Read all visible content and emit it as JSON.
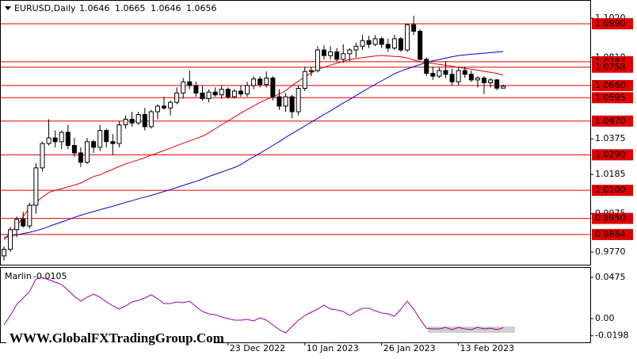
{
  "chart_data": {
    "type": "candlestick",
    "title": "EURUSD,Daily",
    "categories": [
      null,
      null,
      null,
      null,
      null,
      null,
      null,
      null,
      null,
      null,
      null,
      null,
      null,
      null,
      null,
      null,
      null,
      null,
      null,
      null,
      null,
      null,
      null,
      null,
      null,
      null,
      null,
      null,
      null,
      null,
      null,
      null,
      null,
      null,
      null,
      "23 Dec 2022",
      null,
      null,
      null,
      null,
      null,
      null,
      null,
      null,
      null,
      null,
      null,
      "10 Jan 2023",
      null,
      null,
      null,
      null,
      null,
      null,
      null,
      null,
      null,
      null,
      null,
      "26 Jan 2023",
      null,
      null,
      null,
      null,
      null,
      null,
      null,
      null,
      null,
      null,
      null,
      "13 Feb 2023",
      null,
      null,
      null,
      null,
      null,
      null,
      null
    ],
    "open": [
      0.975,
      0.9785,
      0.989,
      0.9945,
      0.991,
      1.002,
      1.022,
      1.035,
      1.038,
      1.036,
      1.041,
      1.034,
      1.03,
      1.025,
      1.036,
      1.033,
      1.042,
      1.036,
      1.035,
      1.045,
      1.048,
      1.046,
      1.0505,
      1.044,
      1.052,
      1.055,
      1.054,
      1.057,
      1.062,
      1.068,
      1.066,
      1.062,
      1.059,
      1.0625,
      1.061,
      1.064,
      1.06,
      1.063,
      1.0615,
      1.066,
      1.0695,
      1.0665,
      1.07,
      1.06,
      1.055,
      1.06,
      1.052,
      1.0645,
      1.0735,
      1.074,
      1.085,
      1.082,
      1.084,
      1.08,
      1.083,
      1.085,
      1.087,
      1.09,
      1.088,
      1.091,
      1.088,
      1.086,
      1.091,
      1.085,
      1.0985,
      1.095,
      1.08,
      1.0725,
      1.071,
      1.074,
      1.072,
      1.068,
      1.074,
      1.072,
      1.069,
      1.07,
      1.0675,
      1.069,
      1.0646
    ],
    "high": [
      0.98,
      0.9905,
      0.996,
      0.9985,
      1.0035,
      1.0245,
      1.036,
      1.048,
      1.042,
      1.042,
      1.045,
      1.038,
      1.033,
      1.038,
      1.037,
      1.045,
      1.043,
      1.04,
      1.047,
      1.05,
      1.052,
      1.052,
      1.054,
      1.053,
      1.056,
      1.06,
      1.058,
      1.065,
      1.07,
      1.074,
      1.068,
      1.066,
      1.064,
      1.065,
      1.066,
      1.065,
      1.064,
      1.066,
      1.068,
      1.071,
      1.071,
      1.0735,
      1.071,
      1.064,
      1.062,
      1.061,
      1.066,
      1.076,
      1.076,
      1.087,
      1.0875,
      1.087,
      1.086,
      1.088,
      1.086,
      1.089,
      1.093,
      1.0925,
      1.093,
      1.092,
      1.091,
      1.093,
      1.092,
      1.099,
      1.1033,
      1.096,
      1.081,
      1.076,
      1.0755,
      1.079,
      1.075,
      1.076,
      1.076,
      1.074,
      1.071,
      1.071,
      1.07,
      1.0695,
      1.0665
    ],
    "low": [
      0.9725,
      0.977,
      0.985,
      0.99,
      0.9895,
      0.9975,
      1.02,
      1.034,
      1.033,
      1.032,
      1.032,
      1.028,
      1.0225,
      1.024,
      1.03,
      1.031,
      1.033,
      1.029,
      1.033,
      1.043,
      1.044,
      1.045,
      1.042,
      1.043,
      1.048,
      1.053,
      1.05,
      1.056,
      1.059,
      1.064,
      1.06,
      1.058,
      1.057,
      1.06,
      1.059,
      1.059,
      1.059,
      1.06,
      1.06,
      1.064,
      1.065,
      1.065,
      1.058,
      1.053,
      1.052,
      1.0485,
      1.05,
      1.063,
      1.071,
      1.073,
      1.08,
      1.08,
      1.079,
      1.078,
      1.079,
      1.081,
      1.085,
      1.086,
      1.087,
      1.086,
      1.084,
      1.085,
      1.084,
      1.084,
      1.093,
      1.0795,
      1.071,
      1.069,
      1.07,
      1.07,
      1.066,
      1.066,
      1.07,
      1.068,
      1.065,
      1.0615,
      1.065,
      1.0635,
      1.0646
    ],
    "close": [
      0.9785,
      0.989,
      0.9945,
      0.991,
      1.002,
      1.022,
      1.035,
      1.038,
      1.036,
      1.041,
      1.034,
      1.03,
      1.025,
      1.036,
      1.033,
      1.042,
      1.036,
      1.035,
      1.045,
      1.048,
      1.046,
      1.0505,
      1.044,
      1.052,
      1.055,
      1.054,
      1.057,
      1.062,
      1.068,
      1.066,
      1.062,
      1.059,
      1.0625,
      1.061,
      1.064,
      1.06,
      1.063,
      1.0615,
      1.066,
      1.0695,
      1.0665,
      1.07,
      1.06,
      1.055,
      1.06,
      1.052,
      1.0645,
      1.0735,
      1.074,
      1.085,
      1.082,
      1.084,
      1.08,
      1.083,
      1.085,
      1.087,
      1.09,
      1.088,
      1.091,
      1.088,
      1.086,
      1.091,
      1.085,
      1.0985,
      1.095,
      1.08,
      1.0725,
      1.071,
      1.074,
      1.072,
      1.068,
      1.074,
      1.072,
      1.069,
      1.07,
      1.0675,
      1.069,
      1.0646,
      1.0656
    ],
    "ylim": [
      0.9707,
      1.1117
    ],
    "yticks": [
      {
        "value": 1.102,
        "label": "1.1020"
      },
      {
        "value": 1.081,
        "label": "1.0810"
      },
      {
        "value": 1.0375,
        "label": "1.0375"
      },
      {
        "value": 1.0185,
        "label": "1.0185"
      },
      {
        "value": 0.9975,
        "label": "0.9975"
      },
      {
        "value": 0.977,
        "label": "0.9770"
      }
    ],
    "levels": [
      {
        "value": 1.099,
        "label": "1.0990"
      },
      {
        "value": 1.0787,
        "label": "1.0787"
      },
      {
        "value": 1.0758,
        "label": "1.0758"
      },
      {
        "value": 1.066,
        "label": "1.0660"
      },
      {
        "value": 1.0595,
        "label": "1.0595"
      },
      {
        "value": 1.047,
        "label": "1.0470"
      },
      {
        "value": 1.029,
        "label": "1.0290"
      },
      {
        "value": 1.01,
        "label": "1.0100"
      },
      {
        "value": 0.995,
        "label": "0.9950"
      },
      {
        "value": 0.9864,
        "label": "0.9864"
      }
    ],
    "level_color": "#e00000",
    "moving_averages": [
      {
        "color": "#e00000",
        "values": [
          0.9838,
          0.9874,
          0.991,
          0.9959,
          1.0008,
          1.0036,
          1.0064,
          1.0089,
          1.01,
          1.0109,
          1.0119,
          1.0128,
          1.0139,
          1.0157,
          1.0174,
          1.0183,
          1.0198,
          1.0213,
          1.0228,
          1.0241,
          1.0252,
          1.0263,
          1.0275,
          1.0288,
          1.03,
          1.0313,
          1.0326,
          1.0339,
          1.0352,
          1.0364,
          1.0377,
          1.0389,
          1.0408,
          1.0429,
          1.045,
          1.0471,
          1.0492,
          1.0513,
          1.0532,
          1.0551,
          1.057,
          1.0586,
          1.06,
          1.0614,
          1.0633,
          1.0659,
          1.0684,
          1.0707,
          1.0727,
          1.0746,
          1.0758,
          1.0769,
          1.078,
          1.0789,
          1.08,
          1.0804,
          1.0809,
          1.0813,
          1.0818,
          1.0821,
          1.0818,
          1.0815,
          1.0813,
          1.0807,
          1.0797,
          1.0787,
          1.0782,
          1.0778,
          1.0773,
          1.0768,
          1.0763,
          1.0757,
          1.0752,
          1.0747,
          1.0742,
          1.0736,
          1.0731,
          1.0725,
          1.0715
        ]
      },
      {
        "color": "#0000cd",
        "values": [
          0.9847,
          0.9854,
          0.9862,
          0.9869,
          0.9876,
          0.9884,
          0.9894,
          0.9907,
          0.9919,
          0.9931,
          0.9943,
          0.9956,
          0.9967,
          0.9977,
          0.9987,
          0.9996,
          1.0006,
          1.0015,
          1.0025,
          1.0036,
          1.0045,
          1.0055,
          1.0064,
          1.0073,
          1.0083,
          1.0094,
          1.0104,
          1.0115,
          1.0126,
          1.0137,
          1.0148,
          1.016,
          1.0174,
          1.0186,
          1.0198,
          1.021,
          1.0222,
          1.0238,
          1.0259,
          1.0279,
          1.0299,
          1.0319,
          1.034,
          1.036,
          1.0383,
          1.0403,
          1.0424,
          1.0444,
          1.0464,
          1.0485,
          1.0505,
          1.0525,
          1.0546,
          1.0566,
          1.0586,
          1.0606,
          1.0627,
          1.0647,
          1.0666,
          1.0685,
          1.0704,
          1.0723,
          1.0737,
          1.0749,
          1.0761,
          1.0772,
          1.0784,
          1.0792,
          1.0799,
          1.0806,
          1.0814,
          1.082,
          1.0824,
          1.0827,
          1.083,
          1.0833,
          1.0836,
          1.0839,
          1.0842
        ]
      }
    ],
    "indicator": {
      "name": "Marlin",
      "type": "line",
      "color": "#a000a0",
      "values": [
        -0.0073,
        0.0037,
        0.0165,
        0.0238,
        0.0311,
        0.0457,
        0.0475,
        0.0448,
        0.042,
        0.0393,
        0.0329,
        0.0256,
        0.0201,
        0.0247,
        0.0283,
        0.0247,
        0.0192,
        0.0146,
        0.011,
        0.0146,
        0.0192,
        0.021,
        0.0238,
        0.0274,
        0.0229,
        0.0174,
        0.0174,
        0.0192,
        0.0183,
        0.0201,
        0.0137,
        0.0082,
        0.0055,
        0.0046,
        0.0018,
        0.0,
        -0.0018,
        -0.0018,
        -0.0009,
        -0.0027,
        0.0009,
        -0.0018,
        -0.0073,
        -0.0128,
        -0.0165,
        -0.0091,
        -0.0018,
        0.0037,
        0.0073,
        0.011,
        0.0155,
        0.011,
        0.0101,
        0.0082,
        0.0037,
        0.0082,
        0.0119,
        0.0119,
        0.0091,
        0.0064,
        0.0055,
        0.0027,
        0.011,
        0.0201,
        0.011,
        -0.0009,
        -0.011,
        -0.0119,
        -0.0119,
        -0.0101,
        -0.0128,
        -0.0101,
        -0.0119,
        -0.0128,
        -0.0101,
        -0.0119,
        -0.011,
        -0.0128,
        -0.0105
      ],
      "ylim": [
        -0.0274,
        0.0594
      ],
      "yticks": [
        0.0475,
        {
          "value": 0,
          "label": "0.00"
        },
        -0.0198
      ]
    }
  },
  "watermark": "WWW.GlobalFXTradingGroup.Com"
}
